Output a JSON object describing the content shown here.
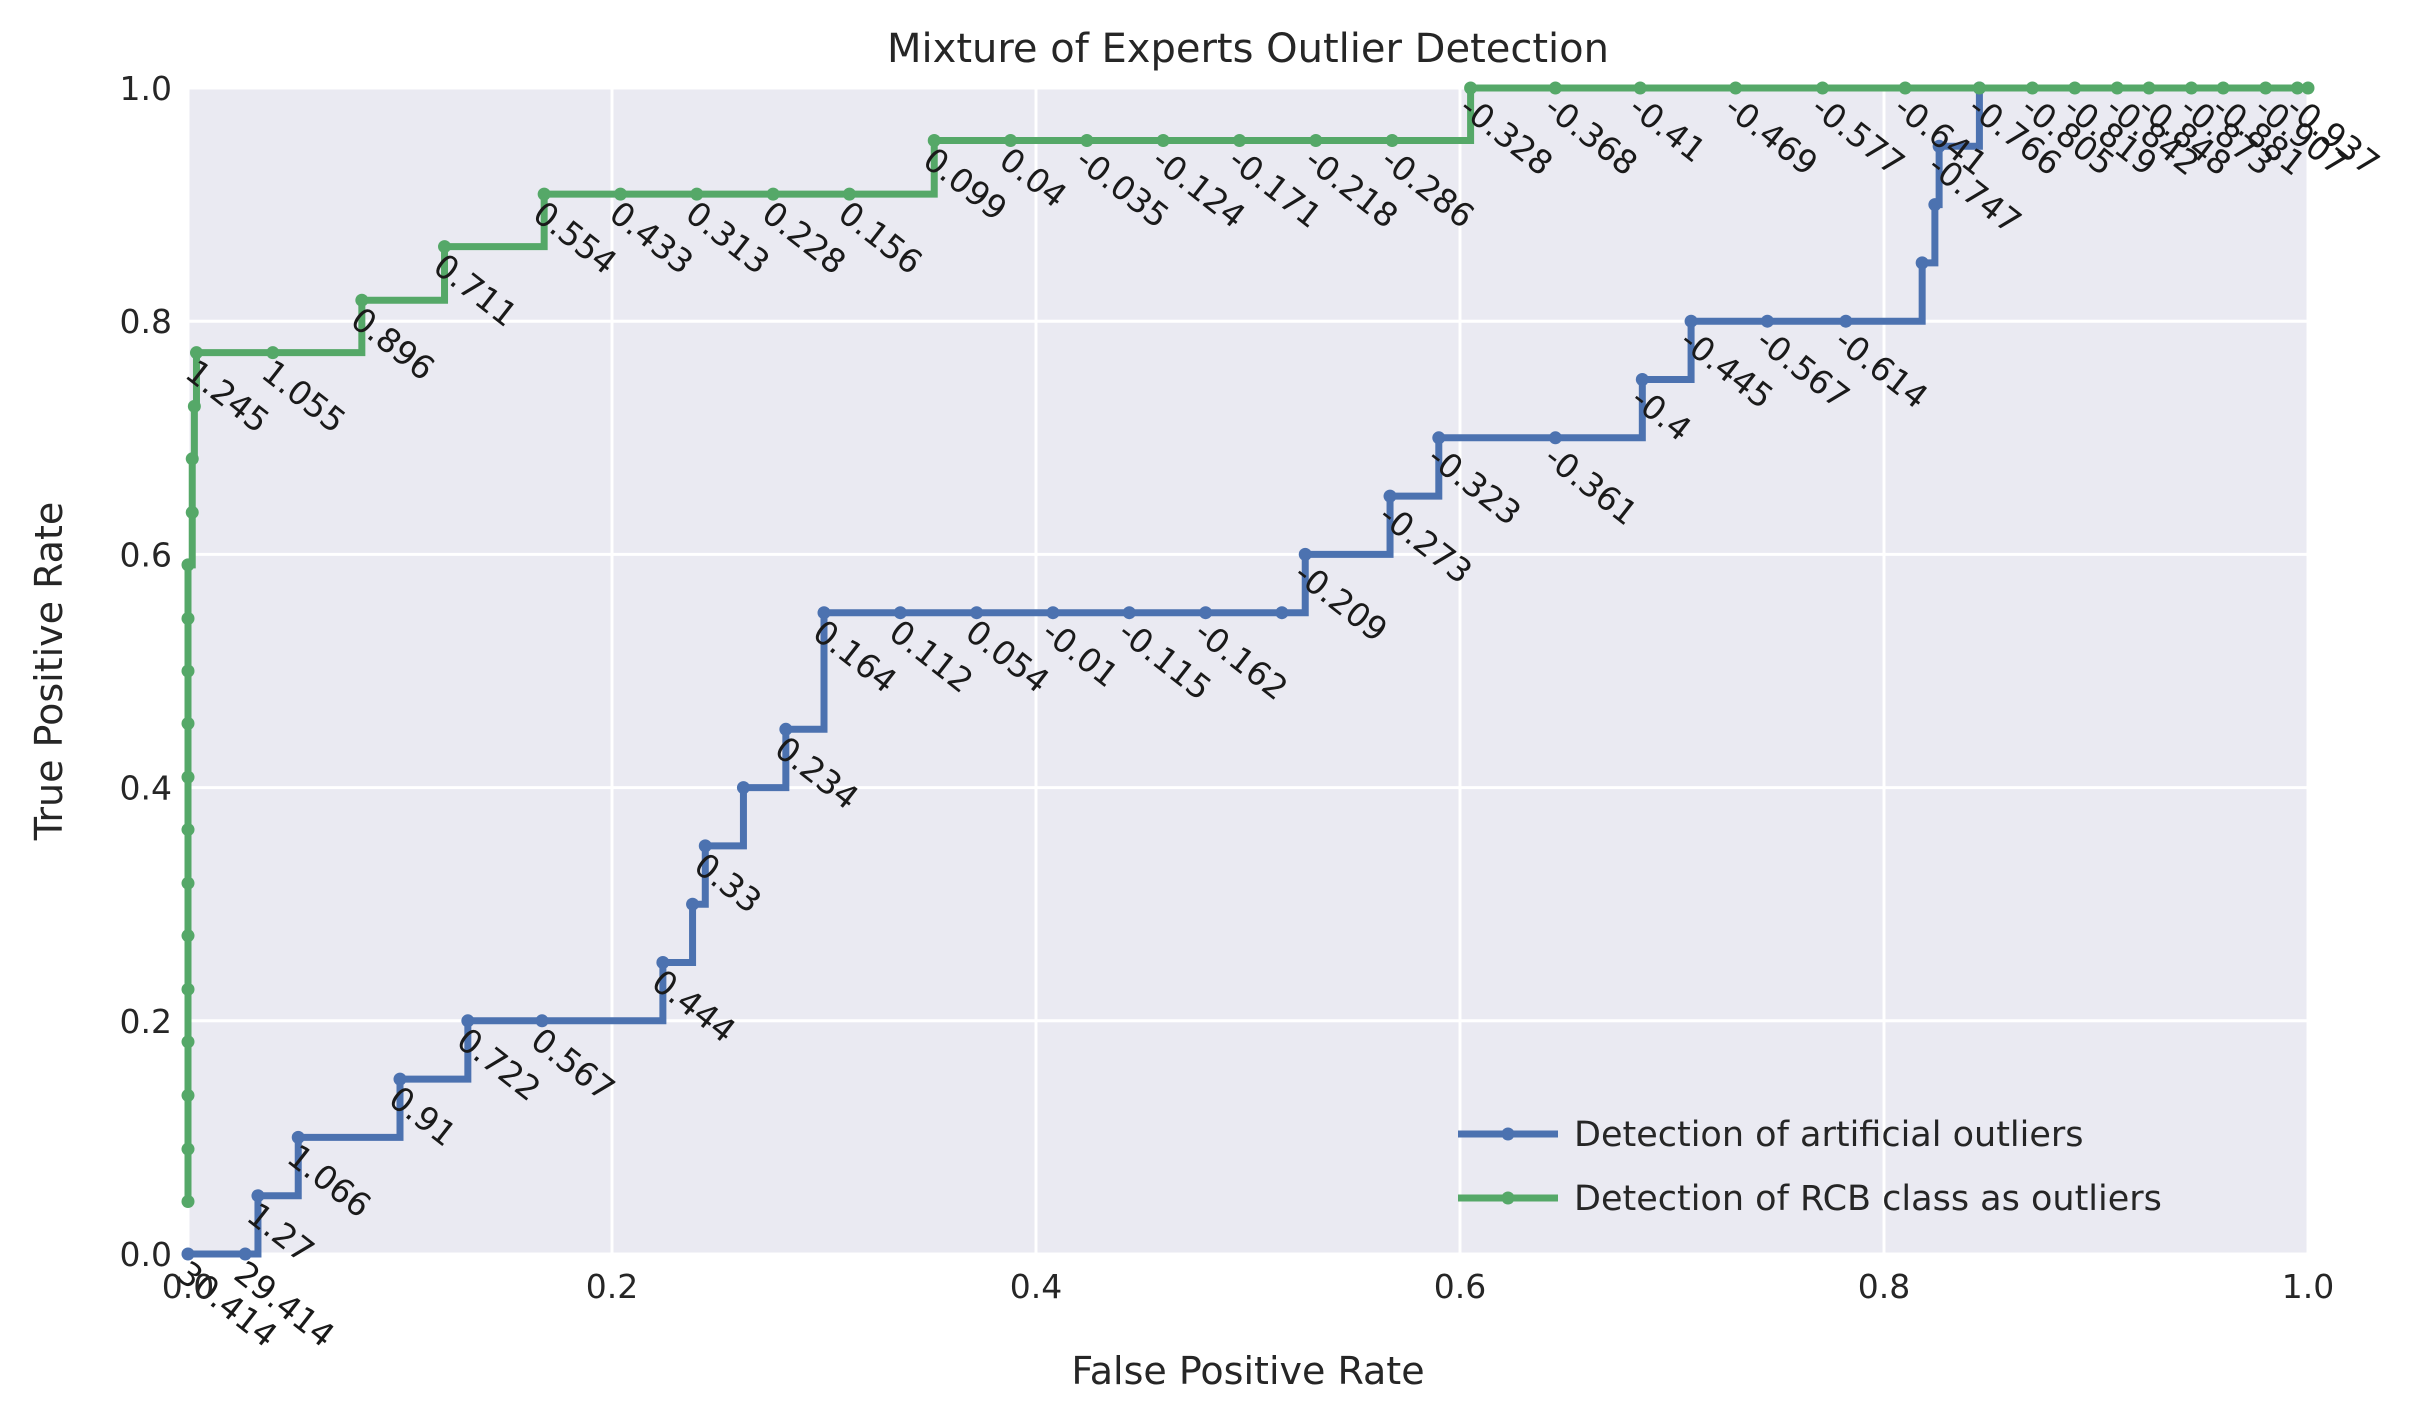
{
  "chart_data": {
    "type": "line",
    "title": "Mixture of Experts Outlier Detection",
    "xlabel": "False Positive Rate",
    "ylabel": "True Positive Rate",
    "xlim": [
      0.0,
      1.0
    ],
    "ylim": [
      0.0,
      1.0
    ],
    "xticks": [
      "0.0",
      "0.2",
      "0.4",
      "0.6",
      "0.8",
      "1.0"
    ],
    "yticks": [
      "0.0",
      "0.2",
      "0.4",
      "0.6",
      "0.8",
      "1.0"
    ],
    "grid": true,
    "legend_position": "lower-right",
    "step_style": "post",
    "series": [
      {
        "name": "Detection of artificial outliers",
        "color": "#4c72b0",
        "points": [
          {
            "x": 0.0,
            "y": 0.0,
            "label": "30.414"
          },
          {
            "x": 0.027,
            "y": 0.0,
            "label": "29.414"
          },
          {
            "x": 0.033,
            "y": 0.05,
            "label": "1.27"
          },
          {
            "x": 0.052,
            "y": 0.1,
            "label": "1.066"
          },
          {
            "x": 0.1,
            "y": 0.15,
            "label": "0.91"
          },
          {
            "x": 0.132,
            "y": 0.2,
            "label": "0.722"
          },
          {
            "x": 0.167,
            "y": 0.2,
            "label": "0.567"
          },
          {
            "x": 0.224,
            "y": 0.25,
            "label": "0.444"
          },
          {
            "x": 0.238,
            "y": 0.3
          },
          {
            "x": 0.244,
            "y": 0.35,
            "label": "0.33"
          },
          {
            "x": 0.262,
            "y": 0.4
          },
          {
            "x": 0.282,
            "y": 0.45,
            "label": "0.234"
          },
          {
            "x": 0.3,
            "y": 0.55,
            "label": "0.164"
          },
          {
            "x": 0.336,
            "y": 0.55,
            "label": "0.112"
          },
          {
            "x": 0.372,
            "y": 0.55,
            "label": "0.054"
          },
          {
            "x": 0.408,
            "y": 0.55,
            "label": "-0.01"
          },
          {
            "x": 0.444,
            "y": 0.55,
            "label": "-0.115"
          },
          {
            "x": 0.48,
            "y": 0.55,
            "label": "-0.162"
          },
          {
            "x": 0.516,
            "y": 0.55
          },
          {
            "x": 0.527,
            "y": 0.6,
            "label": "-0.209"
          },
          {
            "x": 0.567,
            "y": 0.65,
            "label": "-0.273"
          },
          {
            "x": 0.59,
            "y": 0.7,
            "label": "-0.323"
          },
          {
            "x": 0.645,
            "y": 0.7,
            "label": "-0.361"
          },
          {
            "x": 0.686,
            "y": 0.75,
            "label": "-0.4"
          },
          {
            "x": 0.709,
            "y": 0.8,
            "label": "-0.445"
          },
          {
            "x": 0.745,
            "y": 0.8,
            "label": "-0.567"
          },
          {
            "x": 0.782,
            "y": 0.8,
            "label": "-0.614"
          },
          {
            "x": 0.818,
            "y": 0.85
          },
          {
            "x": 0.824,
            "y": 0.9
          },
          {
            "x": 0.826,
            "y": 0.95,
            "label": "-0.747"
          },
          {
            "x": 0.845,
            "y": 1.0
          }
        ]
      },
      {
        "name": "Detection of RCB class as outliers",
        "color": "#55a868",
        "points": [
          {
            "x": 0.0,
            "y": 0.045
          },
          {
            "x": 0.0,
            "y": 0.09
          },
          {
            "x": 0.0,
            "y": 0.136
          },
          {
            "x": 0.0,
            "y": 0.182
          },
          {
            "x": 0.0,
            "y": 0.227
          },
          {
            "x": 0.0,
            "y": 0.273
          },
          {
            "x": 0.0,
            "y": 0.318
          },
          {
            "x": 0.0,
            "y": 0.364
          },
          {
            "x": 0.0,
            "y": 0.409
          },
          {
            "x": 0.0,
            "y": 0.455
          },
          {
            "x": 0.0,
            "y": 0.5
          },
          {
            "x": 0.0,
            "y": 0.545
          },
          {
            "x": 0.0,
            "y": 0.591
          },
          {
            "x": 0.002,
            "y": 0.636
          },
          {
            "x": 0.002,
            "y": 0.682
          },
          {
            "x": 0.003,
            "y": 0.727
          },
          {
            "x": 0.004,
            "y": 0.773,
            "label": "1.245"
          },
          {
            "x": 0.04,
            "y": 0.773,
            "label": "1.055"
          },
          {
            "x": 0.082,
            "y": 0.818,
            "label": "0.896"
          },
          {
            "x": 0.121,
            "y": 0.864,
            "label": "0.711"
          },
          {
            "x": 0.168,
            "y": 0.909,
            "label": "0.554"
          },
          {
            "x": 0.204,
            "y": 0.909,
            "label": "0.433"
          },
          {
            "x": 0.24,
            "y": 0.909,
            "label": "0.313"
          },
          {
            "x": 0.276,
            "y": 0.909,
            "label": "0.228"
          },
          {
            "x": 0.312,
            "y": 0.909,
            "label": "0.156"
          },
          {
            "x": 0.352,
            "y": 0.955,
            "label": "0.099"
          },
          {
            "x": 0.388,
            "y": 0.955,
            "label": "0.04"
          },
          {
            "x": 0.424,
            "y": 0.955,
            "label": "-0.035"
          },
          {
            "x": 0.46,
            "y": 0.955,
            "label": "-0.124"
          },
          {
            "x": 0.496,
            "y": 0.955,
            "label": "-0.171"
          },
          {
            "x": 0.532,
            "y": 0.955,
            "label": "-0.218"
          },
          {
            "x": 0.568,
            "y": 0.955,
            "label": "-0.286"
          },
          {
            "x": 0.605,
            "y": 1.0,
            "label": "-0.328"
          },
          {
            "x": 0.645,
            "y": 1.0,
            "label": "-0.368"
          },
          {
            "x": 0.685,
            "y": 1.0,
            "label": "-0.41"
          },
          {
            "x": 0.73,
            "y": 1.0,
            "label": "-0.469"
          },
          {
            "x": 0.771,
            "y": 1.0,
            "label": "-0.577"
          },
          {
            "x": 0.81,
            "y": 1.0,
            "label": "-0.641"
          },
          {
            "x": 0.845,
            "y": 1.0,
            "label": "-0.766"
          },
          {
            "x": 0.87,
            "y": 1.0,
            "label": "-0.805"
          },
          {
            "x": 0.89,
            "y": 1.0,
            "label": "-0.819"
          },
          {
            "x": 0.91,
            "y": 1.0,
            "label": "-0.842"
          },
          {
            "x": 0.925,
            "y": 1.0,
            "label": "-0.848"
          },
          {
            "x": 0.945,
            "y": 1.0,
            "label": "-0.873"
          },
          {
            "x": 0.96,
            "y": 1.0,
            "label": "-0.881"
          },
          {
            "x": 0.98,
            "y": 1.0,
            "label": "-0.907"
          },
          {
            "x": 0.995,
            "y": 1.0,
            "label": "-0.937"
          },
          {
            "x": 1.0,
            "y": 1.0
          }
        ]
      }
    ]
  }
}
